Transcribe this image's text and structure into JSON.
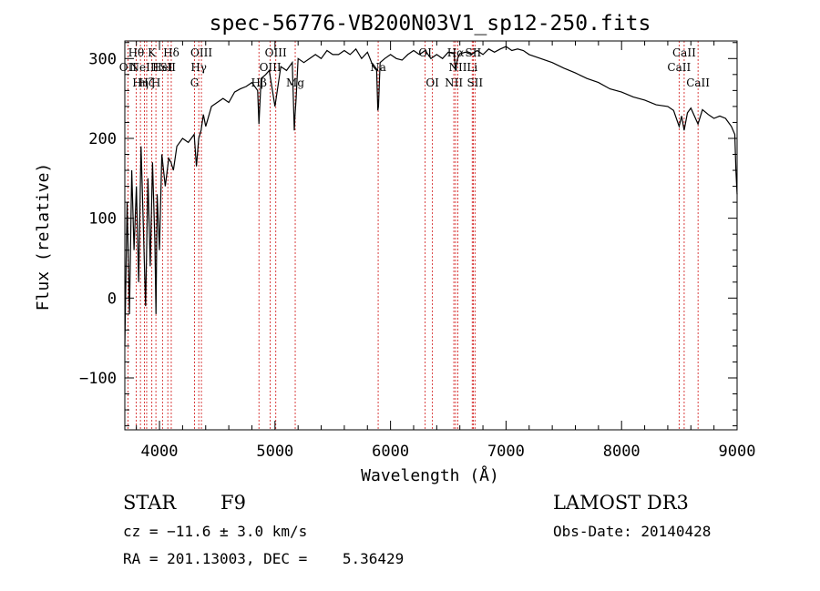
{
  "chart_data": {
    "type": "line",
    "title": "spec-56776-VB200N03V1_sp12-250.fits",
    "xlabel": "Wavelength (Å)",
    "ylabel": "Flux (relative)",
    "xlim": [
      3700,
      9000
    ],
    "ylim": [
      -165,
      322
    ],
    "x_ticks": [
      4000,
      5000,
      6000,
      7000,
      8000,
      9000
    ],
    "x_tick_labels": [
      "4000",
      "5000",
      "6000",
      "7000",
      "8000",
      "9000"
    ],
    "y_ticks": [
      -100,
      0,
      100,
      200,
      300
    ],
    "y_tick_labels": [
      "−100",
      "0",
      "100",
      "200",
      "300"
    ],
    "series": [
      {
        "name": "spectrum",
        "x": [
          3700,
          3720,
          3740,
          3760,
          3780,
          3800,
          3820,
          3840,
          3860,
          3880,
          3900,
          3920,
          3940,
          3960,
          3970,
          3980,
          4000,
          4020,
          4050,
          4080,
          4100,
          4120,
          4150,
          4200,
          4250,
          4300,
          4320,
          4340,
          4360,
          4380,
          4400,
          4450,
          4500,
          4550,
          4600,
          4650,
          4700,
          4750,
          4800,
          4850,
          4861,
          4880,
          4920,
          4950,
          5000,
          5050,
          5100,
          5150,
          5167,
          5172,
          5183,
          5200,
          5250,
          5300,
          5350,
          5400,
          5450,
          5500,
          5550,
          5600,
          5650,
          5700,
          5750,
          5800,
          5850,
          5880,
          5890,
          5896,
          5910,
          5950,
          6000,
          6050,
          6100,
          6150,
          6200,
          6250,
          6300,
          6350,
          6400,
          6450,
          6500,
          6550,
          6563,
          6580,
          6600,
          6650,
          6700,
          6750,
          6800,
          6850,
          6900,
          6950,
          7000,
          7050,
          7100,
          7150,
          7200,
          7300,
          7400,
          7500,
          7600,
          7700,
          7800,
          7900,
          8000,
          8100,
          8200,
          8300,
          8400,
          8450,
          8498,
          8520,
          8542,
          8570,
          8600,
          8662,
          8700,
          8750,
          8800,
          8850,
          8900,
          8950,
          8980,
          8990,
          9000
        ],
        "y": [
          -60,
          120,
          -20,
          160,
          60,
          140,
          20,
          190,
          90,
          -10,
          150,
          40,
          170,
          70,
          -20,
          130,
          60,
          180,
          140,
          175,
          170,
          160,
          190,
          200,
          195,
          205,
          165,
          200,
          210,
          230,
          215,
          240,
          245,
          250,
          245,
          258,
          262,
          265,
          270,
          260,
          218,
          275,
          280,
          285,
          240,
          290,
          285,
          295,
          210,
          225,
          250,
          300,
          295,
          300,
          305,
          300,
          310,
          305,
          305,
          310,
          305,
          312,
          300,
          308,
          290,
          285,
          235,
          240,
          295,
          300,
          305,
          300,
          298,
          305,
          310,
          305,
          310,
          300,
          305,
          300,
          308,
          306,
          285,
          300,
          306,
          308,
          305,
          310,
          305,
          312,
          308,
          312,
          315,
          310,
          312,
          310,
          305,
          300,
          295,
          288,
          282,
          275,
          270,
          262,
          258,
          252,
          248,
          242,
          240,
          235,
          215,
          228,
          210,
          232,
          238,
          218,
          236,
          230,
          225,
          228,
          225,
          215,
          205,
          160,
          130
        ]
      }
    ],
    "line_annotations": [
      {
        "wavelength": 3727,
        "label": "OII",
        "row": 2
      },
      {
        "wavelength": 3798,
        "label": "Hθ",
        "row": 1
      },
      {
        "wavelength": 3835,
        "label": "Hη",
        "row": 3
      },
      {
        "wavelength": 3869,
        "label": "NeIII",
        "row": 2
      },
      {
        "wavelength": 3889,
        "label": "Hζ",
        "row": 3
      },
      {
        "wavelength": 3934,
        "label": "K",
        "row": 1
      },
      {
        "wavelength": 3969,
        "label": "H",
        "row": 3
      },
      {
        "wavelength": 4026,
        "label": "HeI",
        "row": 2
      },
      {
        "wavelength": 4072,
        "label": "SII",
        "row": 2
      },
      {
        "wavelength": 4102,
        "label": "Hδ",
        "row": 1
      },
      {
        "wavelength": 4304,
        "label": "G",
        "row": 3
      },
      {
        "wavelength": 4340,
        "label": "Hγ",
        "row": 2
      },
      {
        "wavelength": 4363,
        "label": "OIII",
        "row": 1
      },
      {
        "wavelength": 4861,
        "label": "Hβ",
        "row": 3
      },
      {
        "wavelength": 4959,
        "label": "OIII",
        "row": 2
      },
      {
        "wavelength": 5007,
        "label": "OIII",
        "row": 1
      },
      {
        "wavelength": 5175,
        "label": "Mg",
        "row": 3
      },
      {
        "wavelength": 5893,
        "label": "Na",
        "row": 2
      },
      {
        "wavelength": 6300,
        "label": "OI",
        "row": 1
      },
      {
        "wavelength": 6363,
        "label": "OI",
        "row": 3
      },
      {
        "wavelength": 6548,
        "label": "NII",
        "row": 3
      },
      {
        "wavelength": 6563,
        "label": "Hα",
        "row": 1
      },
      {
        "wavelength": 6583,
        "label": "NII",
        "row": 2
      },
      {
        "wavelength": 6707,
        "label": "Li",
        "row": 2
      },
      {
        "wavelength": 6716,
        "label": "SII",
        "row": 1
      },
      {
        "wavelength": 6731,
        "label": "SII",
        "row": 3
      },
      {
        "wavelength": 8498,
        "label": "CaII",
        "row": 2
      },
      {
        "wavelength": 8542,
        "label": "CaII",
        "row": 1
      },
      {
        "wavelength": 8662,
        "label": "CaII",
        "row": 3
      }
    ],
    "colors": {
      "line_marker": "#d01010",
      "spectrum": "#000000"
    }
  },
  "info": {
    "object_class": "STAR",
    "subclass": "F9",
    "survey": "LAMOST DR3",
    "redshift": "cz = −11.6 ± 3.0 km/s",
    "obs_date": "Obs-Date: 20140428",
    "coords": "RA = 201.13003, DEC =    5.36429"
  }
}
